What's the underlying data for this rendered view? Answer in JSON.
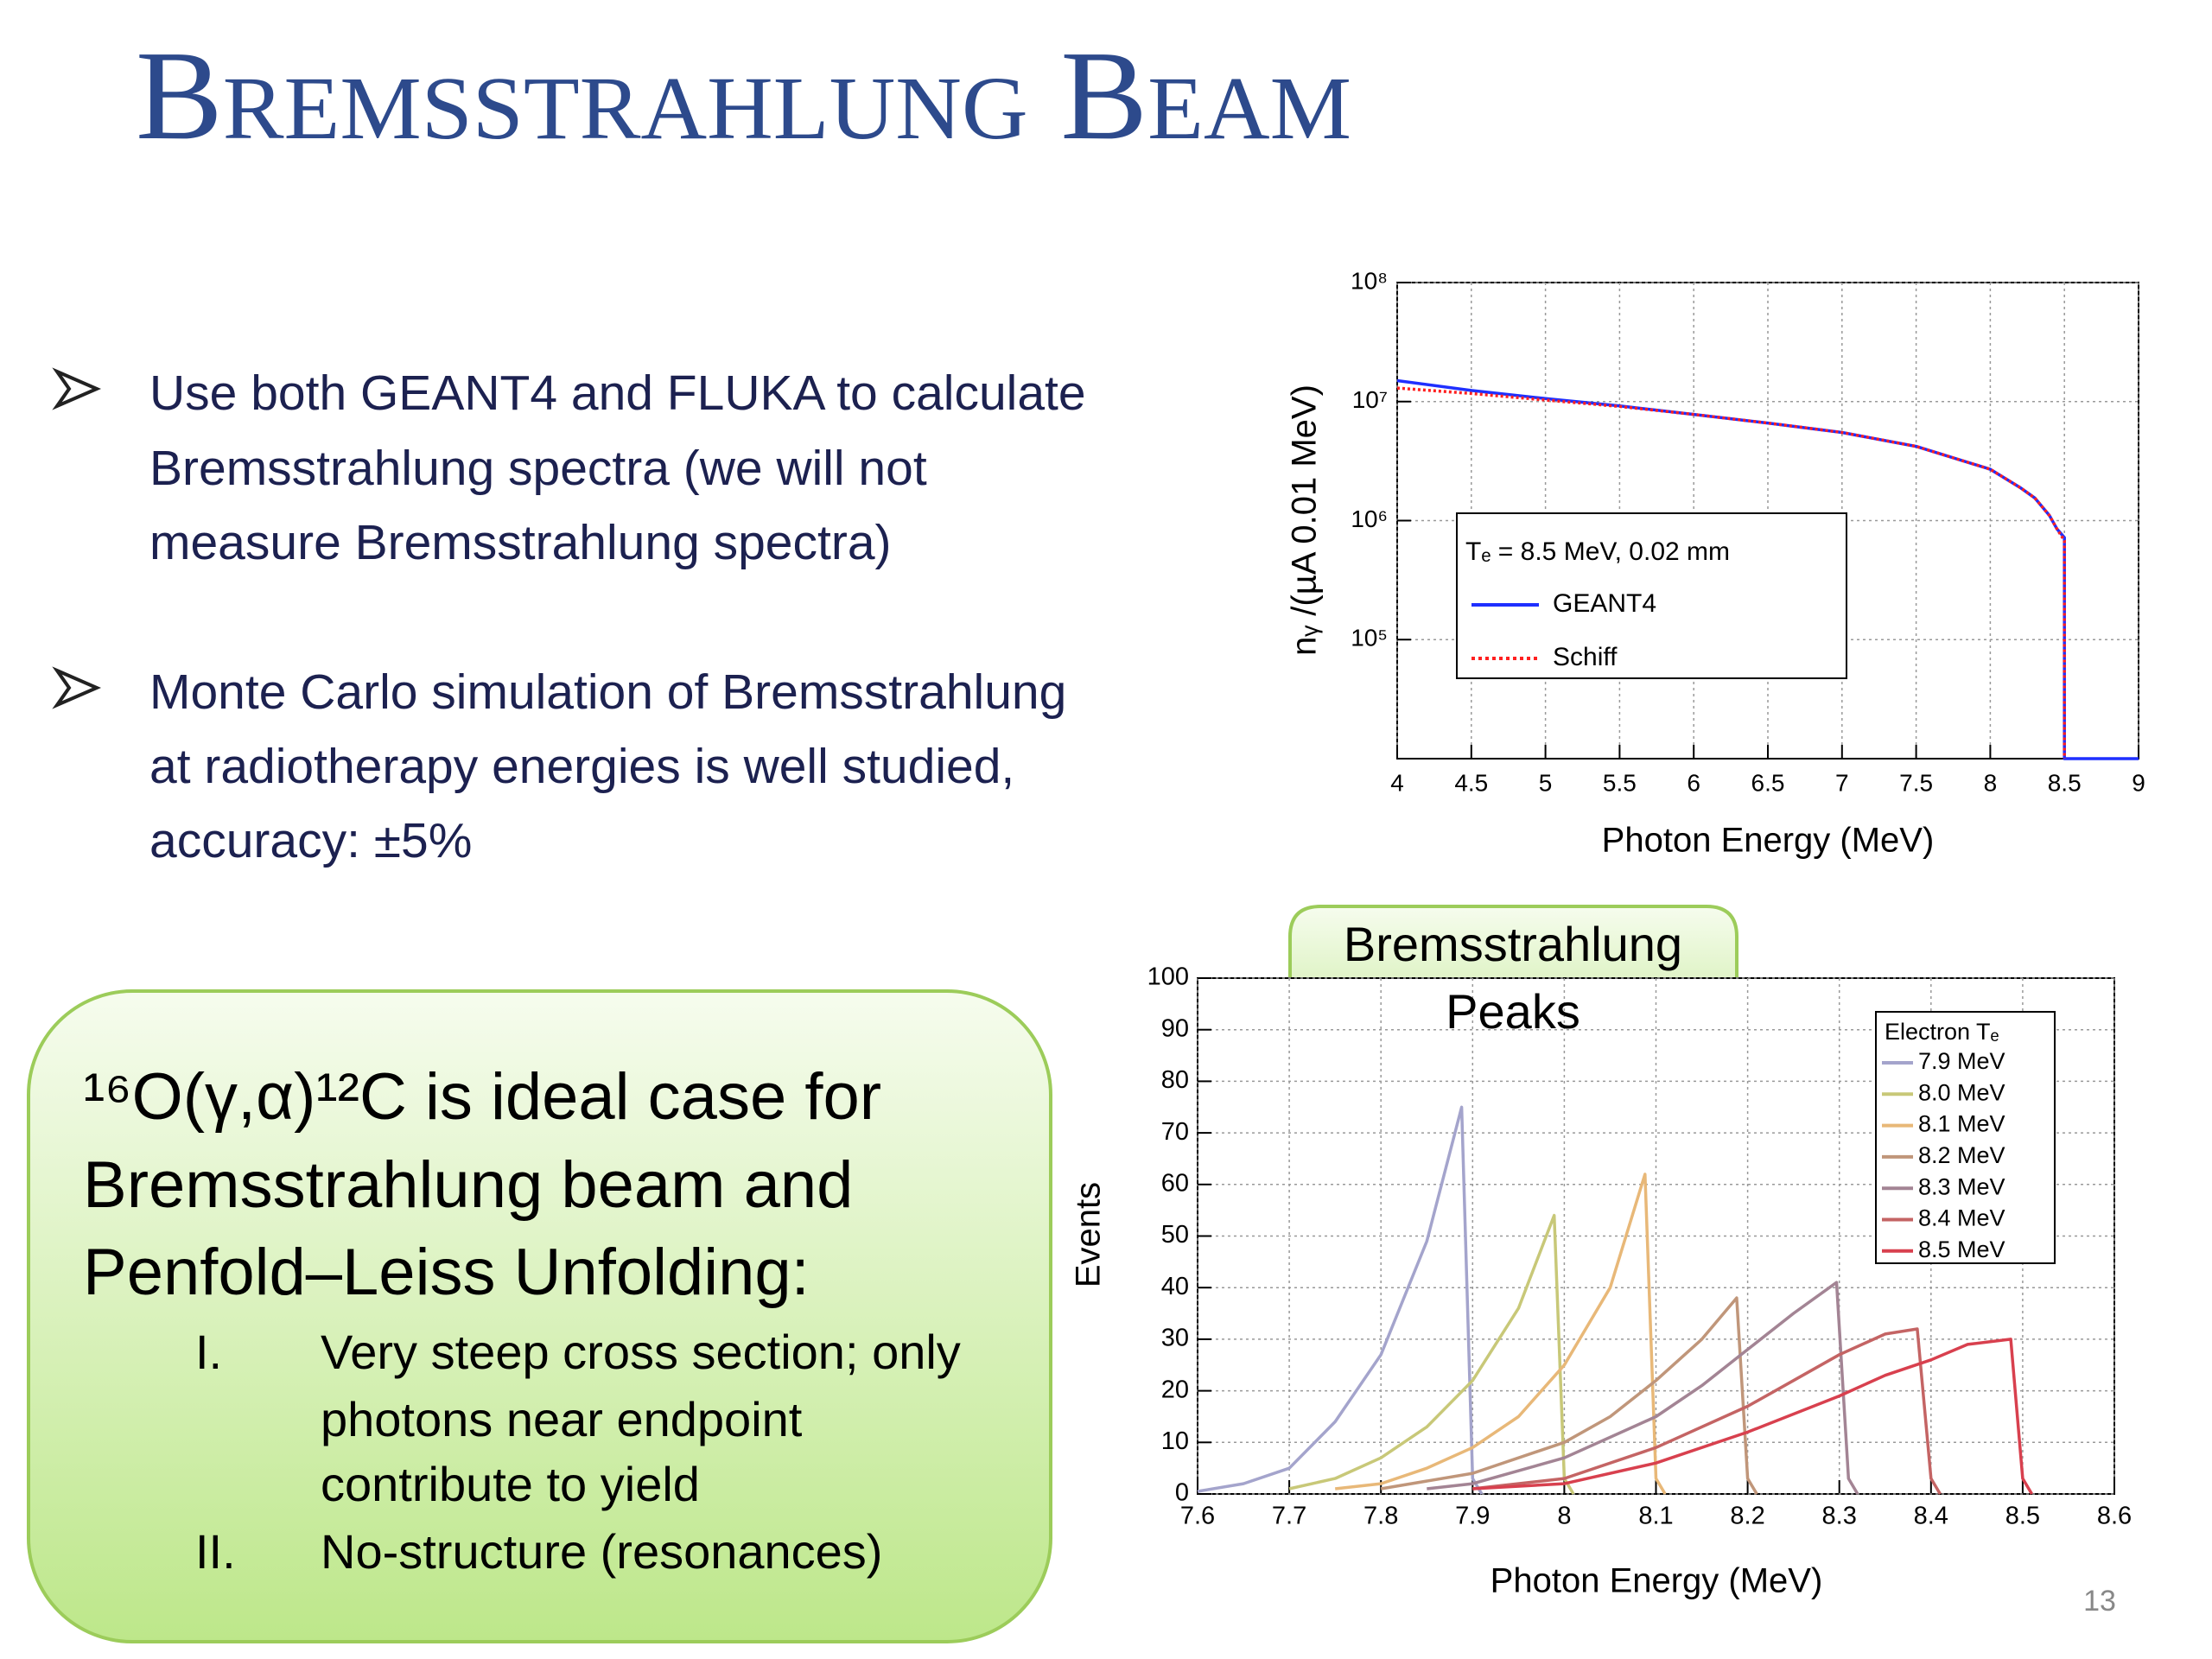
{
  "title": "Bremsstrahlung Beam",
  "bullets": [
    {
      "lines": [
        "Use both GEANT4 and FLUKA to calculate",
        "Bremsstrahlung spectra (we will not",
        "measure Bremsstrahlung spectra)"
      ]
    },
    {
      "lines": [
        "Monte Carlo simulation of Bremsstrahlung",
        "at radiotherapy energies is well studied,",
        "accuracy: ±5%"
      ]
    }
  ],
  "box": {
    "lines": [
      "¹⁶O(γ,α)¹²C is ideal case for",
      "Bremsstrahlung beam and",
      "Penfold–Leiss Unfolding:"
    ],
    "items": [
      {
        "numeral": "I.",
        "lines": [
          "Very steep cross section; only",
          "photons near endpoint",
          "contribute to yield"
        ]
      },
      {
        "numeral": "II.",
        "lines": [
          "No-structure (resonances)"
        ]
      }
    ]
  },
  "page_number": "13",
  "chart_data": [
    {
      "type": "line",
      "x_label": "Photon Energy (MeV)",
      "y_label": "nᵧ /(µA 0.01 MeV)",
      "xlim": [
        4,
        9
      ],
      "xticks": [
        4,
        4.5,
        5,
        5.5,
        6,
        6.5,
        7,
        7.5,
        8,
        8.5,
        9
      ],
      "ylim": [
        10000,
        100000000
      ],
      "yticks": [
        {
          "value": 100000,
          "label": "10⁵"
        },
        {
          "value": 1000000,
          "label": "10⁶"
        },
        {
          "value": 10000000,
          "label": "10⁷"
        },
        {
          "value": 100000000,
          "label": "10⁸"
        }
      ],
      "log_y": true,
      "grid": true,
      "legend_title": "Tₑ = 8.5 MeV, 0.02 mm",
      "series": [
        {
          "name": "GEANT4",
          "color": "#1f2fff",
          "x": [
            4,
            4.5,
            5,
            5.5,
            6,
            6.5,
            7,
            7.5,
            8,
            8.2,
            8.3,
            8.4,
            8.45,
            8.5,
            8.5,
            9
          ],
          "values": [
            15000000,
            12400000,
            10600000,
            9200000,
            7800000,
            6600000,
            5500000,
            4200000,
            2700000,
            1900000,
            1550000,
            1100000,
            850000,
            720000,
            10000,
            10000
          ]
        },
        {
          "name": "Schiff",
          "color": "#ff2020",
          "dash": "dotted",
          "x": [
            4,
            4.5,
            5,
            5.5,
            6,
            6.5,
            7,
            7.5,
            8,
            8.2,
            8.3,
            8.4,
            8.45,
            8.5,
            8.5
          ],
          "values": [
            13000000,
            11700000,
            10300000,
            9100000,
            7800000,
            6600000,
            5500000,
            4200000,
            2700000,
            1900000,
            1550000,
            1100000,
            850000,
            680000,
            10000
          ]
        }
      ]
    },
    {
      "type": "line",
      "x_label": "Photon Energy (MeV)",
      "y_label": "Events",
      "xlim": [
        7.6,
        8.6
      ],
      "xticks": [
        7.6,
        7.7,
        7.8,
        7.9,
        8,
        8.1,
        8.2,
        8.3,
        8.4,
        8.5,
        8.6
      ],
      "ylim": [
        0,
        100
      ],
      "yticks": [
        0,
        10,
        20,
        30,
        40,
        50,
        60,
        70,
        80,
        90,
        100
      ],
      "grid": true,
      "legend_title": "Electron Tₑ",
      "annotation_lines": [
        "Bremsstrahlung",
        "Peaks"
      ],
      "series": [
        {
          "name": "7.9 MeV",
          "color": "#a4a4cc",
          "x": [
            7.6,
            7.65,
            7.7,
            7.75,
            7.8,
            7.85,
            7.888,
            7.9,
            7.91
          ],
          "values": [
            0.5,
            2,
            5,
            14,
            27,
            49,
            75,
            3,
            0
          ]
        },
        {
          "name": "8.0 MeV",
          "color": "#c8c878",
          "x": [
            7.7,
            7.75,
            7.8,
            7.85,
            7.9,
            7.95,
            7.989,
            8.0,
            8.01
          ],
          "values": [
            1,
            3,
            7,
            13,
            22,
            36,
            54,
            3,
            0
          ]
        },
        {
          "name": "8.1 MeV",
          "color": "#e8b878",
          "x": [
            7.75,
            7.8,
            7.85,
            7.9,
            7.95,
            8.0,
            8.05,
            8.088,
            8.1,
            8.11
          ],
          "values": [
            1,
            2,
            5,
            9,
            15,
            25,
            40,
            62,
            3,
            0
          ]
        },
        {
          "name": "8.2 MeV",
          "color": "#c0967a",
          "x": [
            7.8,
            7.9,
            8.0,
            8.05,
            8.1,
            8.15,
            8.188,
            8.2,
            8.21
          ],
          "values": [
            1,
            4,
            10,
            15,
            22,
            30,
            38,
            3,
            0
          ]
        },
        {
          "name": "8.3 MeV",
          "color": "#a38494",
          "x": [
            7.85,
            7.9,
            8.0,
            8.1,
            8.15,
            8.2,
            8.25,
            8.297,
            8.31,
            8.32
          ],
          "values": [
            1,
            2,
            7,
            15,
            21,
            28,
            35,
            41,
            3,
            0
          ]
        },
        {
          "name": "8.4 MeV",
          "color": "#c46464",
          "x": [
            7.9,
            8.0,
            8.1,
            8.2,
            8.25,
            8.3,
            8.35,
            8.385,
            8.4,
            8.41
          ],
          "values": [
            1,
            3,
            9,
            17,
            22,
            27,
            31,
            32,
            3,
            0
          ]
        },
        {
          "name": "8.5 MeV",
          "color": "#d8404e",
          "x": [
            7.9,
            8.0,
            8.1,
            8.2,
            8.3,
            8.35,
            8.4,
            8.44,
            8.487,
            8.5,
            8.51
          ],
          "values": [
            1,
            2,
            6,
            12,
            19,
            23,
            26,
            29,
            30,
            3,
            0
          ]
        }
      ]
    }
  ]
}
